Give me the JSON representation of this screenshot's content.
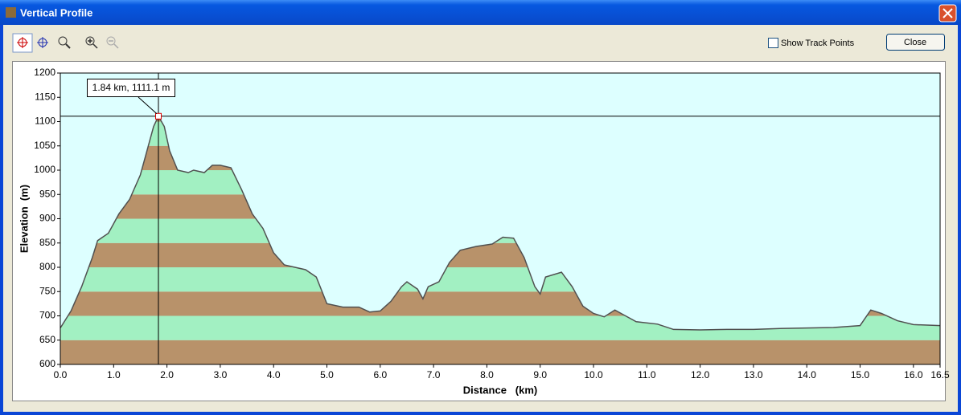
{
  "window": {
    "title": "Vertical Profile",
    "show_track_points": "Show Track Points",
    "close_button": "Close"
  },
  "chart_data": {
    "type": "area",
    "xlabel": "Distance   (km)",
    "ylabel": "Elevation  (m)",
    "xlim": [
      0,
      16.5
    ],
    "ylim": [
      600,
      1200
    ],
    "xticks": [
      {
        "value": 0,
        "label": "0.0"
      },
      {
        "value": 1,
        "label": "1.0"
      },
      {
        "value": 2,
        "label": "2.0"
      },
      {
        "value": 3,
        "label": "3.0"
      },
      {
        "value": 4,
        "label": "4.0"
      },
      {
        "value": 5,
        "label": "5.0"
      },
      {
        "value": 6,
        "label": "6.0"
      },
      {
        "value": 7,
        "label": "7.0"
      },
      {
        "value": 8,
        "label": "8.0"
      },
      {
        "value": 9,
        "label": "9.0"
      },
      {
        "value": 10,
        "label": "10.0"
      },
      {
        "value": 11,
        "label": "11.0"
      },
      {
        "value": 12,
        "label": "12.0"
      },
      {
        "value": 13,
        "label": "13.0"
      },
      {
        "value": 14,
        "label": "14.0"
      },
      {
        "value": 15,
        "label": "15.0"
      },
      {
        "value": 16,
        "label": "16.0"
      },
      16.5
    ],
    "yticks": [
      600,
      650,
      700,
      750,
      800,
      850,
      900,
      950,
      1000,
      1050,
      1100,
      1150,
      1200
    ],
    "band_colors": [
      "#b8926a",
      "#a2f0c2"
    ],
    "background": "#ddffff",
    "line_color": "#505050",
    "x": [
      0,
      0.2,
      0.4,
      0.6,
      0.7,
      0.9,
      1.0,
      1.1,
      1.3,
      1.5,
      1.6,
      1.75,
      1.84,
      1.95,
      2.05,
      2.2,
      2.4,
      2.5,
      2.7,
      2.85,
      3.0,
      3.2,
      3.4,
      3.6,
      3.8,
      4.0,
      4.2,
      4.4,
      4.6,
      4.8,
      5.0,
      5.3,
      5.6,
      5.8,
      6.0,
      6.2,
      6.4,
      6.5,
      6.7,
      6.8,
      6.9,
      7.1,
      7.3,
      7.5,
      7.8,
      8.1,
      8.3,
      8.5,
      8.7,
      8.9,
      9.0,
      9.1,
      9.4,
      9.6,
      9.8,
      10.0,
      10.2,
      10.4,
      10.6,
      10.8,
      11.2,
      11.5,
      12.0,
      12.5,
      13.0,
      13.5,
      14.0,
      14.5,
      15.0,
      15.2,
      15.4,
      15.7,
      16.0,
      16.5
    ],
    "values": [
      675,
      710,
      760,
      820,
      855,
      870,
      890,
      910,
      940,
      990,
      1030,
      1090,
      1111.1,
      1090,
      1040,
      1000,
      995,
      1000,
      995,
      1010,
      1010,
      1005,
      960,
      910,
      880,
      830,
      805,
      800,
      795,
      780,
      725,
      718,
      718,
      708,
      710,
      730,
      760,
      770,
      755,
      735,
      760,
      770,
      810,
      835,
      843,
      848,
      862,
      860,
      820,
      760,
      745,
      780,
      790,
      760,
      720,
      705,
      698,
      712,
      700,
      688,
      683,
      672,
      671,
      672,
      672,
      674,
      675,
      676,
      680,
      712,
      705,
      690,
      682,
      680
    ],
    "cursor": {
      "x": 1.84,
      "y": 1111.1,
      "label": "1.84 km, 1111.1 m"
    }
  }
}
